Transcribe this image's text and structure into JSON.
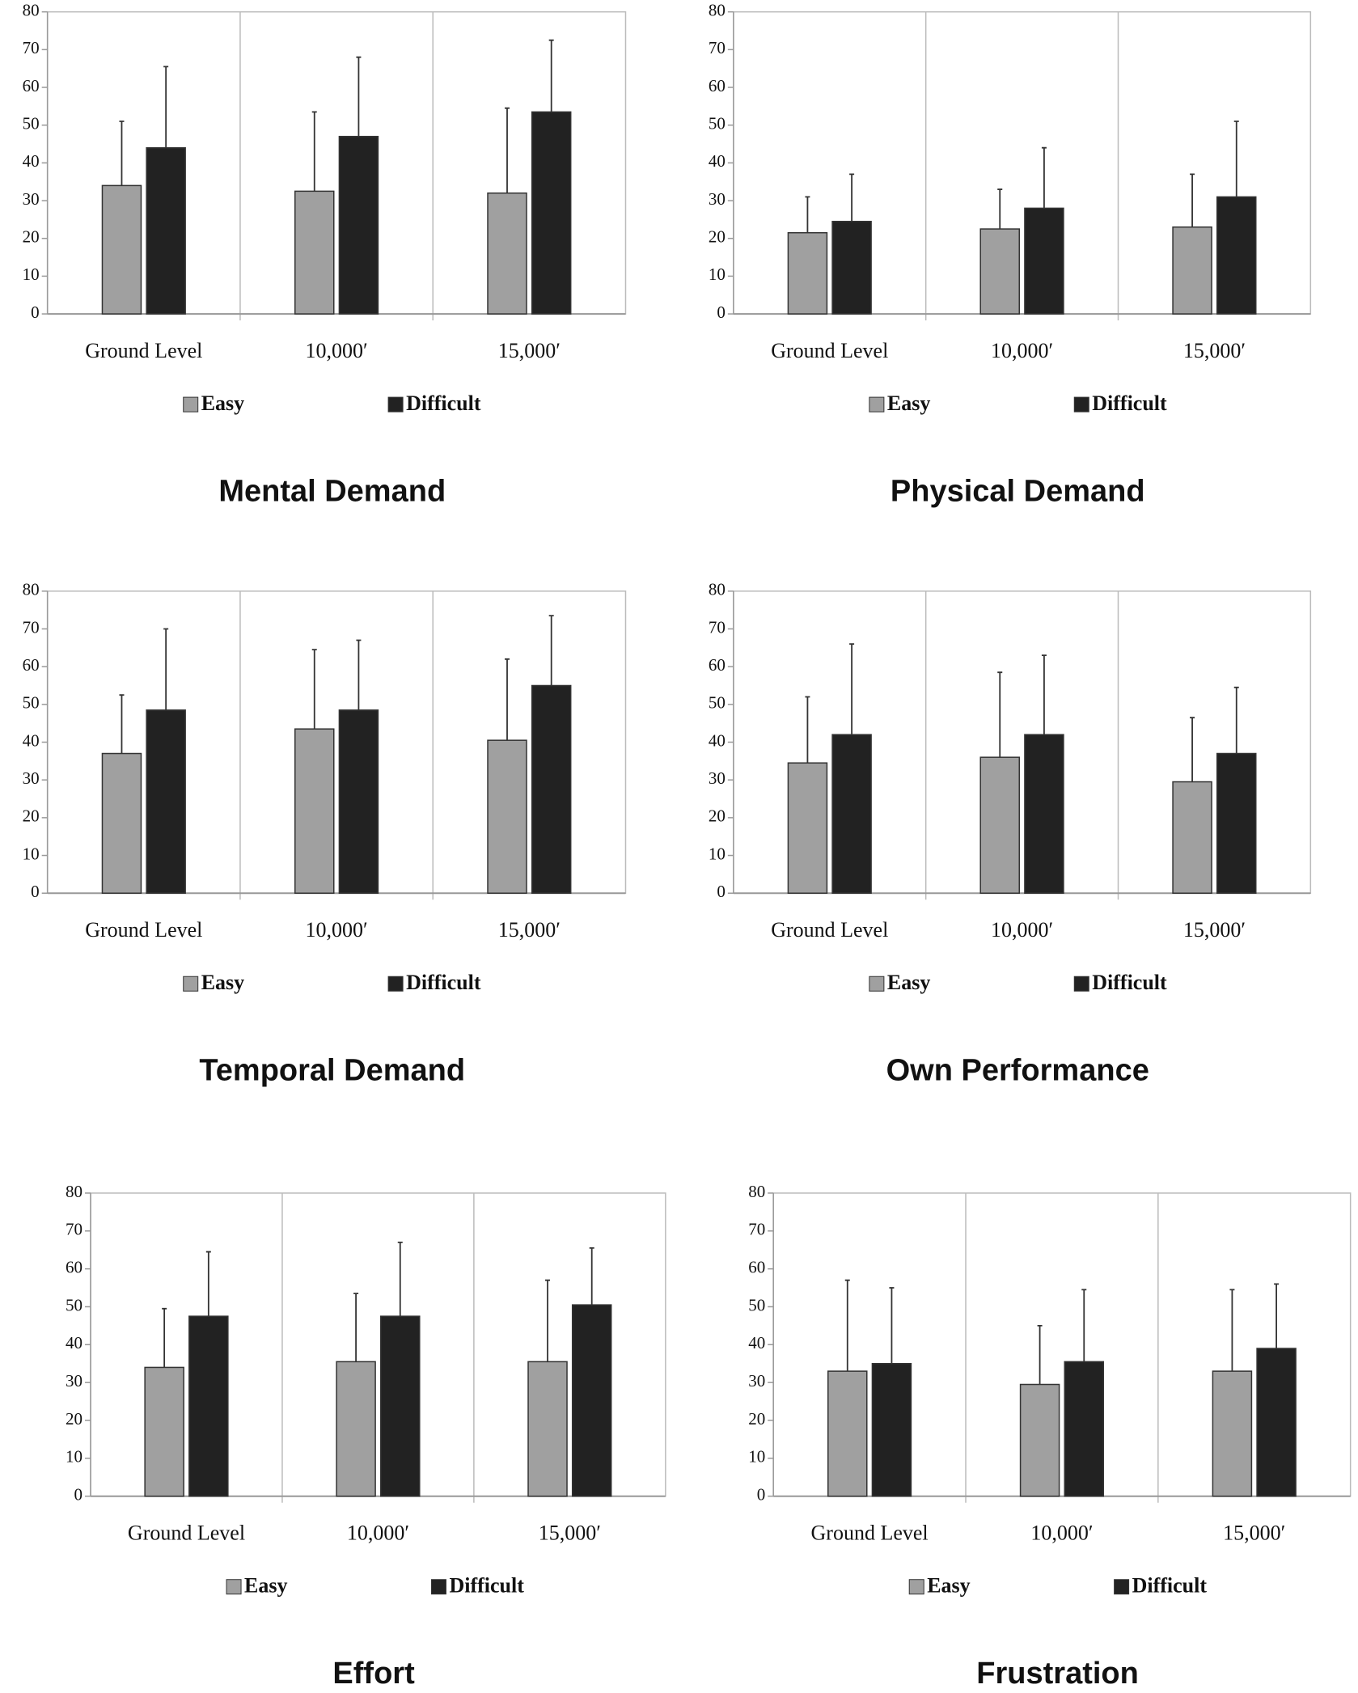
{
  "chart_data": [
    {
      "type": "bar",
      "title": "Mental Demand",
      "categories": [
        "Ground Level",
        "10,000′",
        "15,000′"
      ],
      "series": [
        {
          "name": "Easy",
          "color": "#a0a0a0",
          "values": [
            34,
            32.5,
            32
          ],
          "errors": [
            17,
            21,
            22.5
          ]
        },
        {
          "name": "Difficult",
          "color": "#222222",
          "values": [
            44,
            47,
            53.5
          ],
          "errors": [
            21.5,
            21,
            19
          ]
        }
      ],
      "ylim": [
        0,
        80
      ],
      "yticks": [
        0,
        10,
        20,
        30,
        40,
        50,
        60,
        70,
        80
      ]
    },
    {
      "type": "bar",
      "title": "Physical Demand",
      "categories": [
        "Ground Level",
        "10,000′",
        "15,000′"
      ],
      "series": [
        {
          "name": "Easy",
          "color": "#a0a0a0",
          "values": [
            21.5,
            22.5,
            23
          ],
          "errors": [
            9.5,
            10.5,
            14
          ]
        },
        {
          "name": "Difficult",
          "color": "#222222",
          "values": [
            24.5,
            28,
            31
          ],
          "errors": [
            12.5,
            16,
            20
          ]
        }
      ],
      "ylim": [
        0,
        80
      ],
      "yticks": [
        0,
        10,
        20,
        30,
        40,
        50,
        60,
        70,
        80
      ]
    },
    {
      "type": "bar",
      "title": "Temporal Demand",
      "categories": [
        "Ground Level",
        "10,000′",
        "15,000′"
      ],
      "series": [
        {
          "name": "Easy",
          "color": "#a0a0a0",
          "values": [
            37,
            43.5,
            40.5
          ],
          "errors": [
            15.5,
            21,
            21.5
          ]
        },
        {
          "name": "Difficult",
          "color": "#222222",
          "values": [
            48.5,
            48.5,
            55
          ],
          "errors": [
            21.5,
            18.5,
            18.5
          ]
        }
      ],
      "ylim": [
        0,
        80
      ],
      "yticks": [
        0,
        10,
        20,
        30,
        40,
        50,
        60,
        70,
        80
      ]
    },
    {
      "type": "bar",
      "title": "Own Performance",
      "categories": [
        "Ground Level",
        "10,000′",
        "15,000′"
      ],
      "series": [
        {
          "name": "Easy",
          "color": "#a0a0a0",
          "values": [
            34.5,
            36,
            29.5
          ],
          "errors": [
            17.5,
            22.5,
            17
          ]
        },
        {
          "name": "Difficult",
          "color": "#222222",
          "values": [
            42,
            42,
            37
          ],
          "errors": [
            24,
            21,
            17.5
          ]
        }
      ],
      "ylim": [
        0,
        80
      ],
      "yticks": [
        0,
        10,
        20,
        30,
        40,
        50,
        60,
        70,
        80
      ]
    },
    {
      "type": "bar",
      "title": "Effort",
      "categories": [
        "Ground Level",
        "10,000′",
        "15,000′"
      ],
      "series": [
        {
          "name": "Easy",
          "color": "#a0a0a0",
          "values": [
            34,
            35.5,
            35.5
          ],
          "errors": [
            15.5,
            18,
            21.5
          ]
        },
        {
          "name": "Difficult",
          "color": "#222222",
          "values": [
            47.5,
            47.5,
            50.5
          ],
          "errors": [
            17,
            19.5,
            15
          ]
        }
      ],
      "ylim": [
        0,
        80
      ],
      "yticks": [
        0,
        10,
        20,
        30,
        40,
        50,
        60,
        70,
        80
      ]
    },
    {
      "type": "bar",
      "title": "Frustration",
      "categories": [
        "Ground Level",
        "10,000′",
        "15,000′"
      ],
      "series": [
        {
          "name": "Easy",
          "color": "#a0a0a0",
          "values": [
            33,
            29.5,
            33
          ],
          "errors": [
            24,
            15.5,
            21.5
          ]
        },
        {
          "name": "Difficult",
          "color": "#222222",
          "values": [
            35,
            35.5,
            39
          ],
          "errors": [
            20,
            19,
            17
          ]
        }
      ],
      "ylim": [
        0,
        80
      ],
      "yticks": [
        0,
        10,
        20,
        30,
        40,
        50,
        60,
        70,
        80
      ]
    }
  ]
}
